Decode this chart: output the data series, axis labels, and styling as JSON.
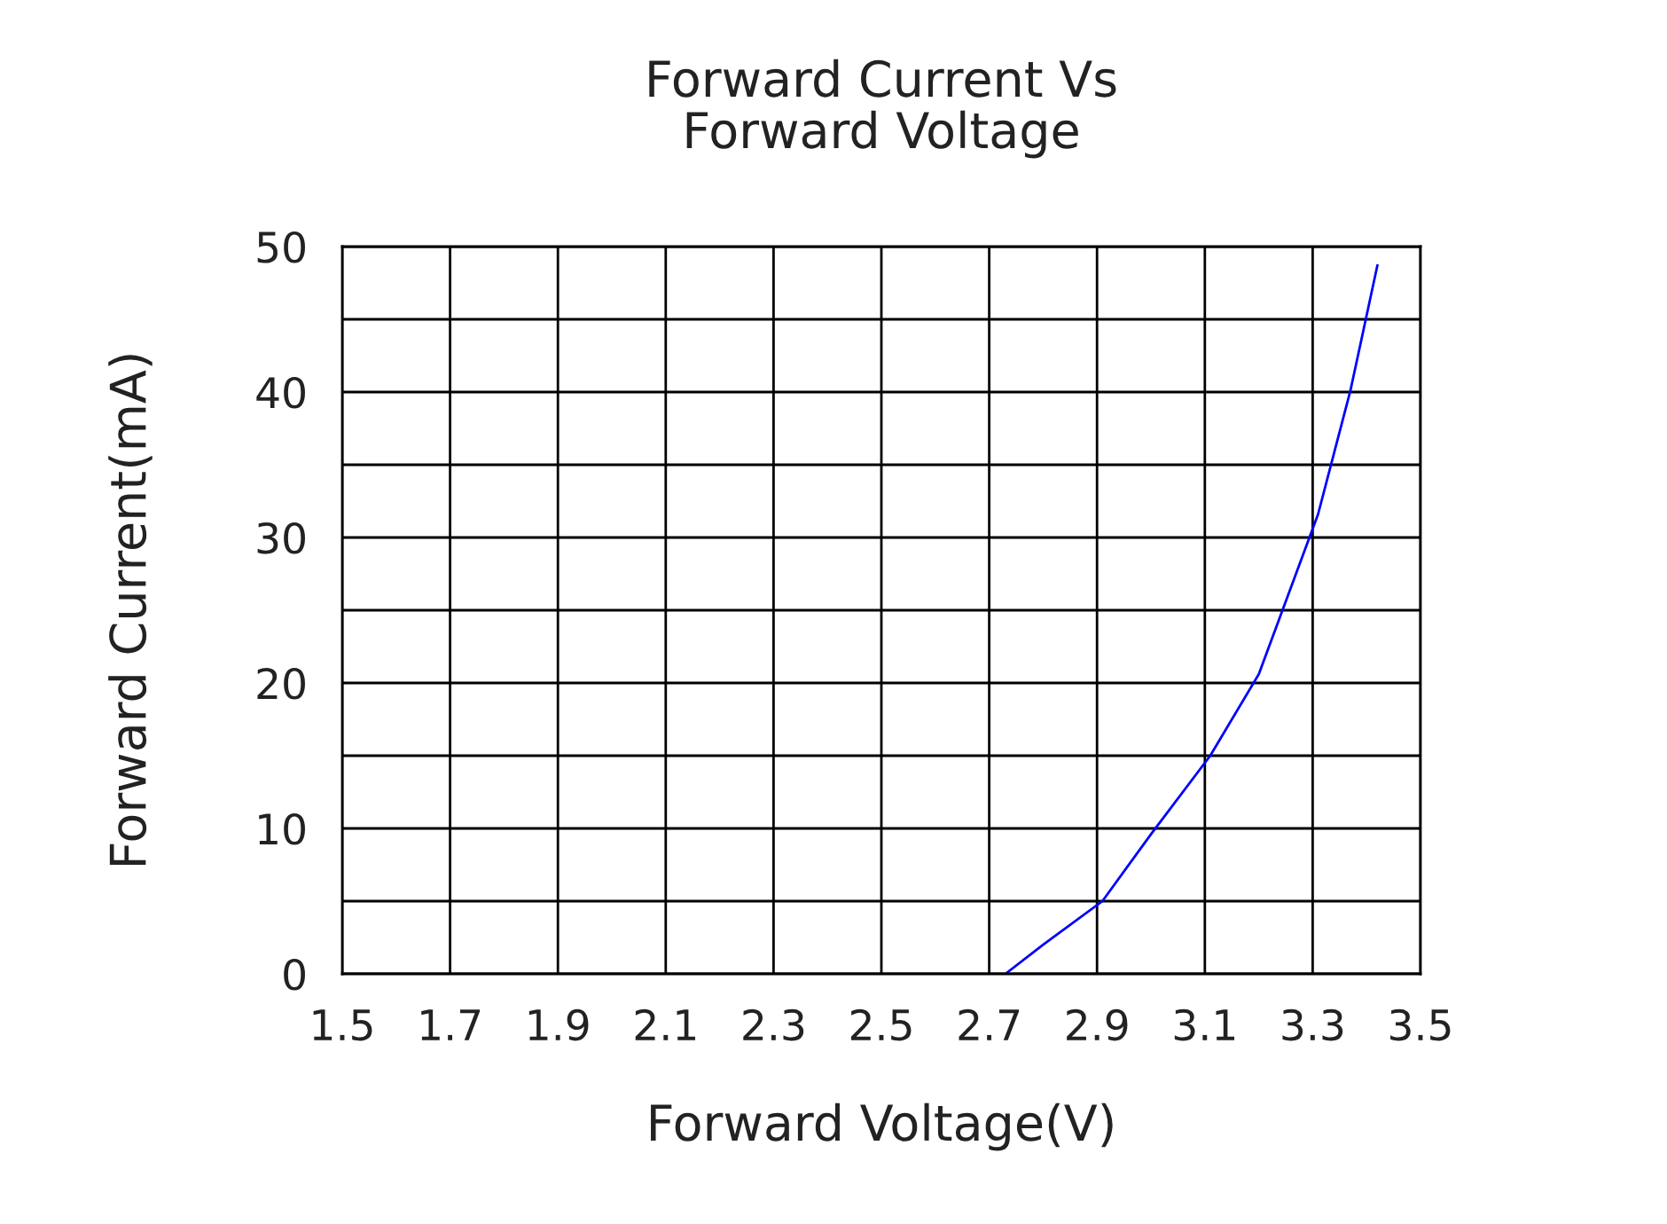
{
  "chart_data": {
    "type": "line",
    "title": "Forward Current Vs\nForward Voltage",
    "xlabel": "Forward Voltage(V)",
    "ylabel": "Forward Current(mA)",
    "x": [
      2.73,
      2.8,
      2.91,
      3.0,
      3.11,
      3.2,
      3.31,
      3.37,
      3.42
    ],
    "series": [
      {
        "color": "#0000ff",
        "values": [
          0,
          2,
          5,
          9.6,
          15,
          20.6,
          31.6,
          40.1,
          48.7
        ]
      }
    ],
    "xlim": [
      1.5,
      3.5
    ],
    "xticks": [
      1.5,
      1.7,
      1.9,
      2.1,
      2.3,
      2.5,
      2.7,
      2.9,
      3.1,
      3.3,
      3.5
    ],
    "ylim": [
      0,
      50
    ],
    "yticks": [
      0,
      {
        "value": 5,
        "label": null
      },
      10,
      {
        "value": 15,
        "label": null
      },
      20,
      {
        "value": 25,
        "label": null
      },
      30,
      {
        "value": 35,
        "label": null
      },
      40,
      {
        "value": 45,
        "label": null
      },
      50
    ],
    "grid": true,
    "marker": "none",
    "line_style": "solid",
    "legend": false
  }
}
